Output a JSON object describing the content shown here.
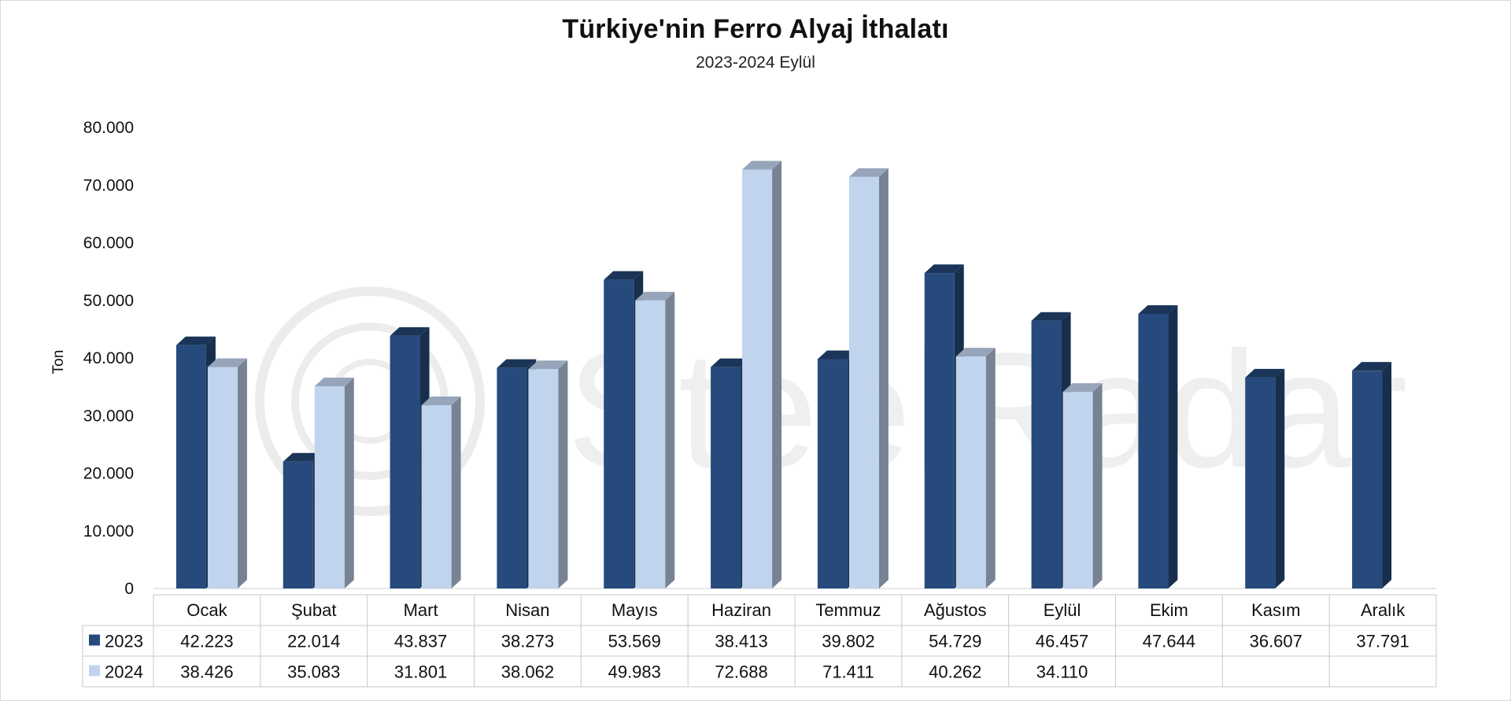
{
  "chart_data": {
    "type": "bar",
    "title": "Türkiye'nin Ferro Alyaj İthalatı",
    "subtitle": "2023-2024 Eylül",
    "ylabel": "Ton",
    "ylim": [
      0,
      80000
    ],
    "yticks": [
      0,
      10000,
      20000,
      30000,
      40000,
      50000,
      60000,
      70000,
      80000
    ],
    "ytick_labels": [
      "0",
      "10.000",
      "20.000",
      "30.000",
      "40.000",
      "50.000",
      "60.000",
      "70.000",
      "80.000"
    ],
    "categories": [
      "Ocak",
      "Şubat",
      "Mart",
      "Nisan",
      "Mayıs",
      "Haziran",
      "Temmuz",
      "Ağustos",
      "Eylül",
      "Ekim",
      "Kasım",
      "Aralık"
    ],
    "series": [
      {
        "name": "2023",
        "color": "#264a7c",
        "values": [
          42223,
          22014,
          43837,
          38273,
          53569,
          38413,
          39802,
          54729,
          46457,
          47644,
          36607,
          37791
        ],
        "labels": [
          "42.223",
          "22.014",
          "43.837",
          "38.273",
          "53.569",
          "38.413",
          "39.802",
          "54.729",
          "46.457",
          "47.644",
          "36.607",
          "37.791"
        ]
      },
      {
        "name": "2024",
        "color": "#c0d4ee",
        "values": [
          38426,
          35083,
          31801,
          38062,
          49983,
          72688,
          71411,
          40262,
          34110,
          null,
          null,
          null
        ],
        "labels": [
          "38.426",
          "35.083",
          "31.801",
          "38.062",
          "49.983",
          "72.688",
          "71.411",
          "40.262",
          "34.110",
          "",
          "",
          ""
        ]
      }
    ],
    "data_table": true,
    "watermark": "SteelRadar"
  }
}
